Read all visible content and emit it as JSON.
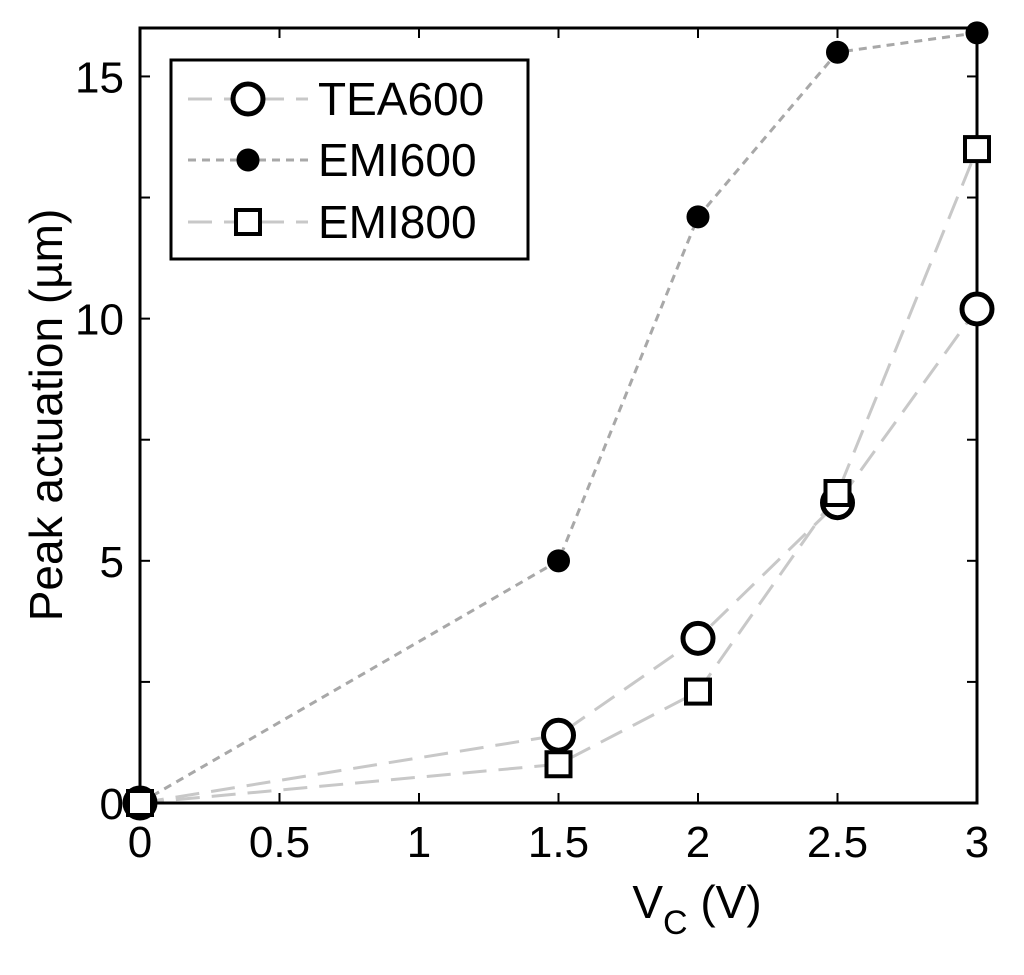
{
  "chart_data": {
    "type": "line",
    "x": [
      0,
      1.5,
      2,
      2.5,
      3
    ],
    "xlim": [
      0,
      3
    ],
    "ylim": [
      0,
      16
    ],
    "xticks": [
      "0",
      "0.5",
      "1",
      "1.5",
      "2",
      "2.5",
      "3"
    ],
    "yticks": [
      "0",
      "5",
      "10",
      "15"
    ],
    "xlabel_main": "V",
    "xlabel_sub": "C",
    "xlabel_unit": " (V)",
    "ylabel": "Peak actuation (µm)",
    "grid": false,
    "legend_position": "top-left",
    "series": [
      {
        "name": "TEA600",
        "marker": "open-circle",
        "line": "long-dash",
        "color": "#c8c8c8",
        "values": [
          0,
          1.4,
          3.4,
          6.2,
          10.2
        ]
      },
      {
        "name": "EMI600",
        "marker": "filled-circle",
        "line": "short-dash",
        "color": "#a8a8a8",
        "values": [
          0,
          5.0,
          12.1,
          15.5,
          15.9
        ]
      },
      {
        "name": "EMI800",
        "marker": "open-square",
        "line": "long-dash",
        "color": "#c8c8c8",
        "values": [
          0,
          0.8,
          2.3,
          6.4,
          13.5
        ]
      }
    ]
  }
}
